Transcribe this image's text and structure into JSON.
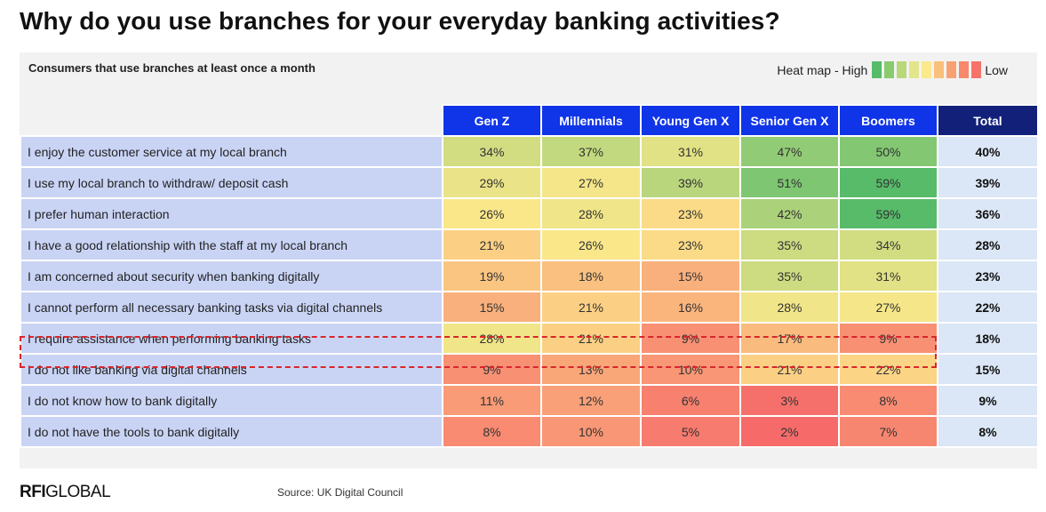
{
  "title": "Why do you use branches for your everyday banking activities?",
  "subtitle": "Consumers that use branches at least once a month",
  "legend": {
    "high_label": "Heat map - High",
    "low_label": "Low",
    "colors": [
      "#57bb6a",
      "#8acb6e",
      "#b9d87a",
      "#e3e58a",
      "#fbe98b",
      "#f9c07b",
      "#f8a273",
      "#f7886e",
      "#f6736a"
    ]
  },
  "source": "Source: UK Digital Council",
  "logo": {
    "bold": "RFI",
    "rest": "GLOBAL"
  },
  "chart_data": {
    "type": "heatmap",
    "title": "Why do you use branches for your everyday banking activities?",
    "subtitle": "Consumers that use branches at least once a month",
    "columns": [
      "Gen Z",
      "Millennials",
      "Young Gen X",
      "Senior Gen X",
      "Boomers"
    ],
    "total_label": "Total",
    "rows": [
      {
        "label": "I enjoy the customer service at my local branch",
        "values": [
          34,
          37,
          31,
          47,
          50
        ],
        "total": 40
      },
      {
        "label": "I use my local branch to withdraw/ deposit cash",
        "values": [
          29,
          27,
          39,
          51,
          59
        ],
        "total": 39
      },
      {
        "label": "I prefer human interaction",
        "values": [
          26,
          28,
          23,
          42,
          59
        ],
        "total": 36
      },
      {
        "label": "I have a good relationship with the staff at my local branch",
        "values": [
          21,
          26,
          23,
          35,
          34
        ],
        "total": 28
      },
      {
        "label": "I am concerned about security when banking digitally",
        "values": [
          19,
          18,
          15,
          35,
          31
        ],
        "total": 23
      },
      {
        "label": "I cannot perform all necessary banking tasks via digital channels",
        "values": [
          15,
          21,
          16,
          28,
          27
        ],
        "total": 22
      },
      {
        "label": "I require assistance when performing banking tasks",
        "values": [
          28,
          21,
          9,
          17,
          9
        ],
        "total": 18
      },
      {
        "label": "I do not like banking via digital channels",
        "values": [
          9,
          13,
          10,
          21,
          22
        ],
        "total": 15
      },
      {
        "label": "I do not know how to bank digitally",
        "values": [
          11,
          12,
          6,
          3,
          8
        ],
        "total": 9
      },
      {
        "label": "I do not have the tools to bank digitally",
        "values": [
          8,
          10,
          5,
          2,
          7
        ],
        "total": 8
      }
    ],
    "unit": "%",
    "highlighted_row": 6
  }
}
